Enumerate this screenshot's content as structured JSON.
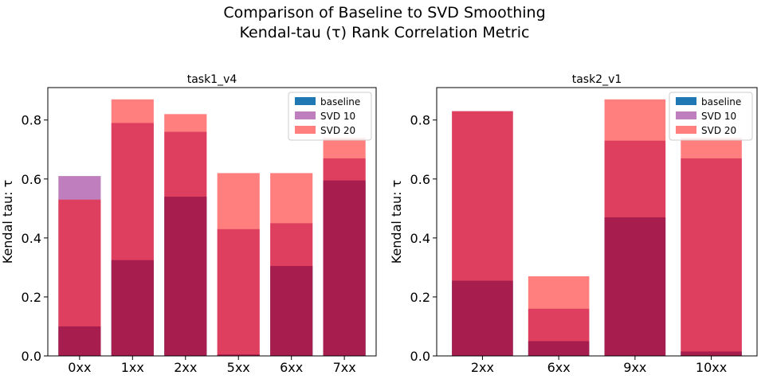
{
  "figure": {
    "title_line1": "Comparison of Baseline to SVD Smoothing",
    "title_line2": "Kendal-tau (τ) Rank Correlation Metric"
  },
  "colors": {
    "baseline": "#1f77b4",
    "svd10": "#800080",
    "svd20": "#ff0000"
  },
  "chart_data": [
    {
      "type": "bar",
      "title": "task1_v4",
      "ylabel": "Kendal tau: τ",
      "ylim": [
        0,
        0.91
      ],
      "yticks": [
        "0.0",
        "0.2",
        "0.4",
        "0.6",
        "0.8"
      ],
      "categories": [
        "0xx",
        "1xx",
        "2xx",
        "5xx",
        "6xx",
        "7xx"
      ],
      "legend_position": "upper right",
      "series": [
        {
          "name": "baseline",
          "values": [
            0.1,
            0.325,
            0.54,
            0.005,
            0.305,
            0.595
          ]
        },
        {
          "name": "SVD 10",
          "values": [
            0.61,
            0.79,
            0.76,
            0.43,
            0.45,
            0.67
          ]
        },
        {
          "name": "SVD 20",
          "values": [
            0.53,
            0.87,
            0.82,
            0.62,
            0.62,
            0.74
          ]
        }
      ]
    },
    {
      "type": "bar",
      "title": "task2_v1",
      "ylabel": "Kendal tau: τ",
      "ylim": [
        0,
        0.91
      ],
      "yticks": [
        "0.0",
        "0.2",
        "0.4",
        "0.6",
        "0.8"
      ],
      "categories": [
        "2xx",
        "6xx",
        "9xx",
        "10xx"
      ],
      "legend_position": "upper right",
      "series": [
        {
          "name": "baseline",
          "values": [
            0.255,
            0.05,
            0.47,
            0.015
          ]
        },
        {
          "name": "SVD 10",
          "values": [
            0.83,
            0.16,
            0.73,
            0.67
          ]
        },
        {
          "name": "SVD 20",
          "values": [
            0.83,
            0.27,
            0.87,
            0.74
          ]
        }
      ]
    }
  ]
}
